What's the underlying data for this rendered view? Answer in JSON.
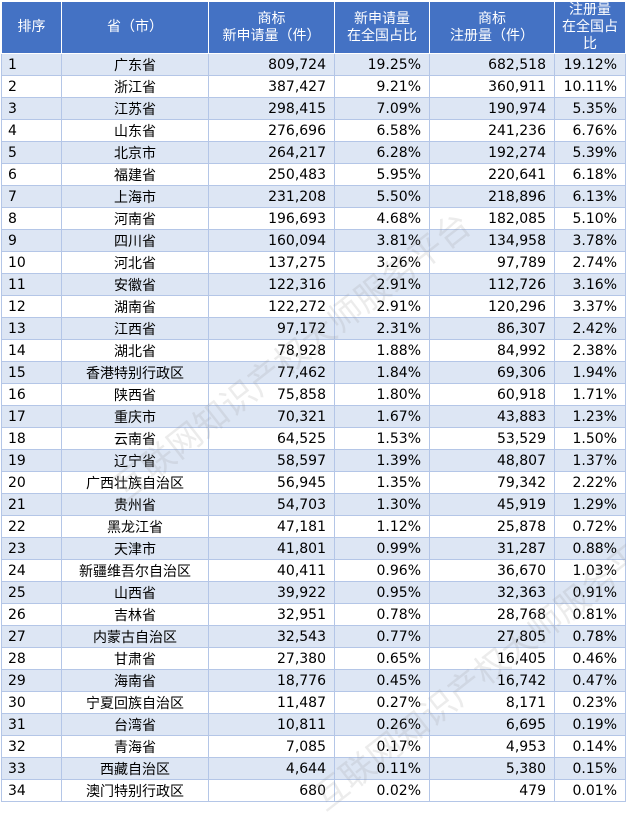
{
  "headers": {
    "rank": "排序",
    "province": "省（市）",
    "new_count": [
      "商标",
      "新申请量（件）"
    ],
    "new_pct": [
      "新申请量",
      "在全国占比"
    ],
    "reg_count": [
      "商标",
      "注册量（件）"
    ],
    "reg_pct": [
      "注册量",
      "在全国占比"
    ]
  },
  "rows": [
    {
      "rank": "1",
      "province": "广东省",
      "new_count": "809,724",
      "new_pct": "19.25%",
      "reg_count": "682,518",
      "reg_pct": "19.12%"
    },
    {
      "rank": "2",
      "province": "浙江省",
      "new_count": "387,427",
      "new_pct": "9.21%",
      "reg_count": "360,911",
      "reg_pct": "10.11%"
    },
    {
      "rank": "3",
      "province": "江苏省",
      "new_count": "298,415",
      "new_pct": "7.09%",
      "reg_count": "190,974",
      "reg_pct": "5.35%"
    },
    {
      "rank": "4",
      "province": "山东省",
      "new_count": "276,696",
      "new_pct": "6.58%",
      "reg_count": "241,236",
      "reg_pct": "6.76%"
    },
    {
      "rank": "5",
      "province": "北京市",
      "new_count": "264,217",
      "new_pct": "6.28%",
      "reg_count": "192,274",
      "reg_pct": "5.39%"
    },
    {
      "rank": "6",
      "province": "福建省",
      "new_count": "250,483",
      "new_pct": "5.95%",
      "reg_count": "220,641",
      "reg_pct": "6.18%"
    },
    {
      "rank": "7",
      "province": "上海市",
      "new_count": "231,208",
      "new_pct": "5.50%",
      "reg_count": "218,896",
      "reg_pct": "6.13%"
    },
    {
      "rank": "8",
      "province": "河南省",
      "new_count": "196,693",
      "new_pct": "4.68%",
      "reg_count": "182,085",
      "reg_pct": "5.10%"
    },
    {
      "rank": "9",
      "province": "四川省",
      "new_count": "160,094",
      "new_pct": "3.81%",
      "reg_count": "134,958",
      "reg_pct": "3.78%"
    },
    {
      "rank": "10",
      "province": "河北省",
      "new_count": "137,275",
      "new_pct": "3.26%",
      "reg_count": "97,789",
      "reg_pct": "2.74%"
    },
    {
      "rank": "11",
      "province": "安徽省",
      "new_count": "122,316",
      "new_pct": "2.91%",
      "reg_count": "112,726",
      "reg_pct": "3.16%"
    },
    {
      "rank": "12",
      "province": "湖南省",
      "new_count": "122,272",
      "new_pct": "2.91%",
      "reg_count": "120,296",
      "reg_pct": "3.37%"
    },
    {
      "rank": "13",
      "province": "江西省",
      "new_count": "97,172",
      "new_pct": "2.31%",
      "reg_count": "86,307",
      "reg_pct": "2.42%"
    },
    {
      "rank": "14",
      "province": "湖北省",
      "new_count": "78,928",
      "new_pct": "1.88%",
      "reg_count": "84,992",
      "reg_pct": "2.38%"
    },
    {
      "rank": "15",
      "province": "香港特别行政区",
      "new_count": "77,462",
      "new_pct": "1.84%",
      "reg_count": "69,306",
      "reg_pct": "1.94%"
    },
    {
      "rank": "16",
      "province": "陕西省",
      "new_count": "75,858",
      "new_pct": "1.80%",
      "reg_count": "60,918",
      "reg_pct": "1.71%"
    },
    {
      "rank": "17",
      "province": "重庆市",
      "new_count": "70,321",
      "new_pct": "1.67%",
      "reg_count": "43,883",
      "reg_pct": "1.23%"
    },
    {
      "rank": "18",
      "province": "云南省",
      "new_count": "64,525",
      "new_pct": "1.53%",
      "reg_count": "53,529",
      "reg_pct": "1.50%"
    },
    {
      "rank": "19",
      "province": "辽宁省",
      "new_count": "58,597",
      "new_pct": "1.39%",
      "reg_count": "48,807",
      "reg_pct": "1.37%"
    },
    {
      "rank": "20",
      "province": "广西壮族自治区",
      "new_count": "56,945",
      "new_pct": "1.35%",
      "reg_count": "79,342",
      "reg_pct": "2.22%"
    },
    {
      "rank": "21",
      "province": "贵州省",
      "new_count": "54,703",
      "new_pct": "1.30%",
      "reg_count": "45,919",
      "reg_pct": "1.29%"
    },
    {
      "rank": "22",
      "province": "黑龙江省",
      "new_count": "47,181",
      "new_pct": "1.12%",
      "reg_count": "25,878",
      "reg_pct": "0.72%"
    },
    {
      "rank": "23",
      "province": "天津市",
      "new_count": "41,801",
      "new_pct": "0.99%",
      "reg_count": "31,287",
      "reg_pct": "0.88%"
    },
    {
      "rank": "24",
      "province": "新疆维吾尔自治区",
      "new_count": "40,411",
      "new_pct": "0.96%",
      "reg_count": "36,670",
      "reg_pct": "1.03%"
    },
    {
      "rank": "25",
      "province": "山西省",
      "new_count": "39,922",
      "new_pct": "0.95%",
      "reg_count": "32,363",
      "reg_pct": "0.91%"
    },
    {
      "rank": "26",
      "province": "吉林省",
      "new_count": "32,951",
      "new_pct": "0.78%",
      "reg_count": "28,768",
      "reg_pct": "0.81%"
    },
    {
      "rank": "27",
      "province": "内蒙古自治区",
      "new_count": "32,543",
      "new_pct": "0.77%",
      "reg_count": "27,805",
      "reg_pct": "0.78%"
    },
    {
      "rank": "28",
      "province": "甘肃省",
      "new_count": "27,380",
      "new_pct": "0.65%",
      "reg_count": "16,405",
      "reg_pct": "0.46%"
    },
    {
      "rank": "29",
      "province": "海南省",
      "new_count": "18,776",
      "new_pct": "0.45%",
      "reg_count": "16,742",
      "reg_pct": "0.47%"
    },
    {
      "rank": "30",
      "province": "宁夏回族自治区",
      "new_count": "11,487",
      "new_pct": "0.27%",
      "reg_count": "8,171",
      "reg_pct": "0.23%"
    },
    {
      "rank": "31",
      "province": "台湾省",
      "new_count": "10,811",
      "new_pct": "0.26%",
      "reg_count": "6,695",
      "reg_pct": "0.19%"
    },
    {
      "rank": "32",
      "province": "青海省",
      "new_count": "7,085",
      "new_pct": "0.17%",
      "reg_count": "4,953",
      "reg_pct": "0.14%"
    },
    {
      "rank": "33",
      "province": "西藏自治区",
      "new_count": "4,644",
      "new_pct": "0.11%",
      "reg_count": "5,380",
      "reg_pct": "0.15%"
    },
    {
      "rank": "34",
      "province": "澳门特别行政区",
      "new_count": "680",
      "new_pct": "0.02%",
      "reg_count": "479",
      "reg_pct": "0.01%"
    }
  ],
  "watermark": "互联网知识产权大师服务平台"
}
